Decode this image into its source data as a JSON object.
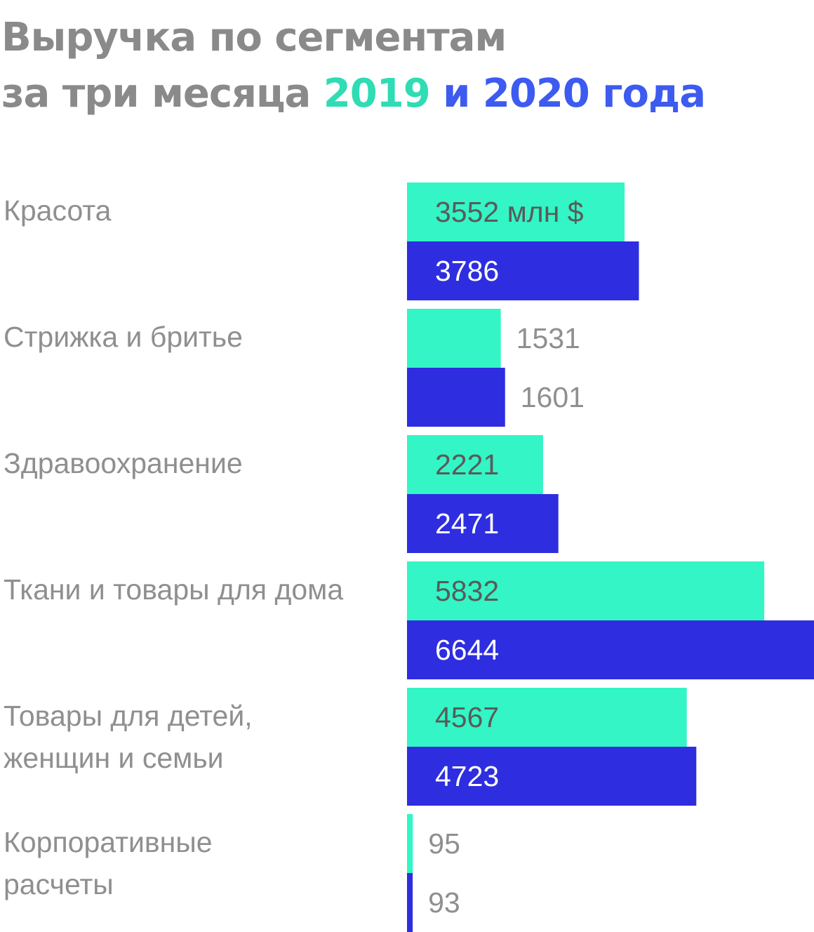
{
  "title": {
    "line1": "Выручка по сегментам",
    "line2_prefix": "за три месяца ",
    "year1": "2019",
    "connector": " и ",
    "year2": "2020 года"
  },
  "colors": {
    "title_gray": "#8a8a8a",
    "series_2019": "#33f5c5",
    "series_2020": "#2e2ee0",
    "title_2019": "#2fdcb4",
    "title_2020": "#3d5bf0"
  },
  "chart_data": {
    "type": "bar",
    "orientation": "horizontal",
    "unit": "млн $",
    "categories": [
      [
        "Красота"
      ],
      [
        "Стрижка и бритье"
      ],
      [
        "Здравоохранение"
      ],
      [
        "Ткани и товары для дома"
      ],
      [
        "Товары для детей,",
        "женщин и семьи"
      ],
      [
        "Корпоративные",
        "расчеты"
      ]
    ],
    "series": [
      {
        "name": "2019",
        "values": [
          3552,
          1531,
          2221,
          5832,
          4567,
          95
        ]
      },
      {
        "name": "2020",
        "values": [
          3786,
          1601,
          2471,
          6644,
          4723,
          93
        ]
      }
    ],
    "value_labels": [
      [
        "3552 млн $",
        "1531",
        "2221",
        "5832",
        "4567",
        "95"
      ],
      [
        "3786",
        "1601",
        "2471",
        "6644",
        "4723",
        "93"
      ]
    ],
    "xlim": [
      0,
      6644
    ],
    "grid": false,
    "legend": "none"
  }
}
